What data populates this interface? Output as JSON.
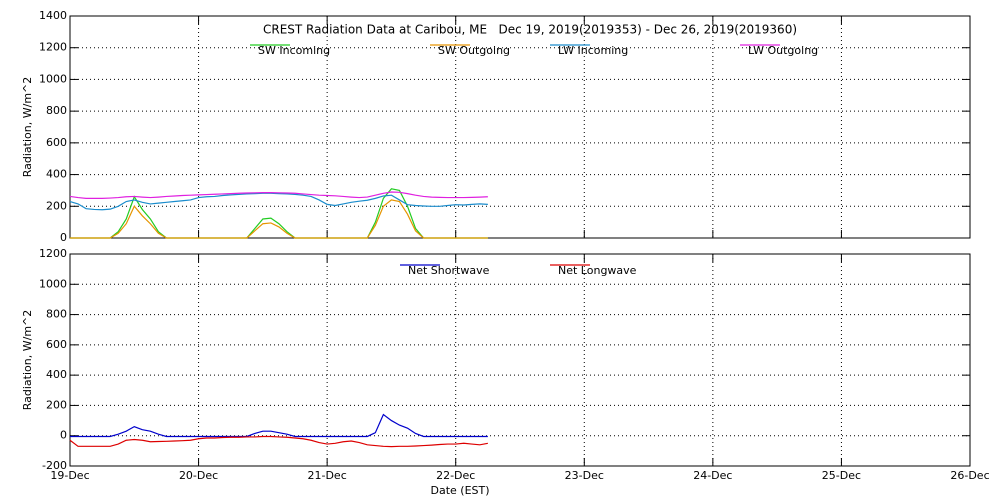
{
  "chart_data": [
    {
      "type": "line",
      "title": "CREST Radiation Data at Caribou, ME   Dec 19, 2019(2019353) - Dec 26, 2019(2019360)",
      "y_label": "Radiation, W/m^2",
      "legend": "upper center",
      "grid": true,
      "xlim": [
        0,
        7
      ],
      "xticks": [
        0,
        1,
        2,
        3,
        4,
        5,
        6,
        7
      ],
      "ylim": [
        0,
        1400
      ],
      "yticks": [
        0,
        200,
        400,
        600,
        800,
        1000,
        1200,
        1400
      ],
      "x": [
        0,
        0.0625,
        0.125,
        0.1875,
        0.25,
        0.3125,
        0.375,
        0.4375,
        0.5,
        0.5625,
        0.625,
        0.6875,
        0.75,
        0.8125,
        0.875,
        0.9375,
        1,
        1.0625,
        1.125,
        1.1875,
        1.25,
        1.3125,
        1.375,
        1.4375,
        1.5,
        1.5625,
        1.625,
        1.6875,
        1.75,
        1.8125,
        1.875,
        1.9375,
        2,
        2.0625,
        2.125,
        2.1875,
        2.25,
        2.3125,
        2.375,
        2.4375,
        2.5,
        2.5625,
        2.625,
        2.6875,
        2.75,
        2.8125,
        2.875,
        2.9375,
        3,
        3.0625,
        3.125,
        3.1875,
        3.25
      ],
      "series": [
        {
          "name": "SW Incoming",
          "color": "#22cc22",
          "values": [
            0,
            0,
            0,
            0,
            0,
            0,
            40,
            120,
            260,
            180,
            120,
            40,
            0,
            0,
            0,
            0,
            0,
            0,
            0,
            0,
            0,
            0,
            0,
            60,
            120,
            125,
            90,
            40,
            0,
            0,
            0,
            0,
            0,
            0,
            0,
            0,
            0,
            0,
            100,
            250,
            310,
            300,
            200,
            60,
            0,
            0,
            0,
            0,
            0,
            0,
            0,
            0,
            0
          ]
        },
        {
          "name": "SW Outgoing",
          "color": "#e69500",
          "values": [
            0,
            0,
            0,
            0,
            0,
            0,
            30,
            90,
            200,
            140,
            90,
            30,
            0,
            0,
            0,
            0,
            0,
            0,
            0,
            0,
            0,
            0,
            0,
            45,
            90,
            95,
            70,
            30,
            0,
            0,
            0,
            0,
            0,
            0,
            0,
            0,
            0,
            0,
            80,
            200,
            240,
            230,
            150,
            45,
            0,
            0,
            0,
            0,
            0,
            0,
            0,
            0,
            0
          ]
        },
        {
          "name": "LW Incoming",
          "color": "#1a8ccc",
          "values": [
            230,
            215,
            185,
            180,
            178,
            182,
            200,
            230,
            240,
            225,
            215,
            220,
            225,
            230,
            235,
            240,
            255,
            260,
            262,
            268,
            272,
            275,
            278,
            280,
            282,
            282,
            280,
            278,
            275,
            270,
            262,
            240,
            212,
            205,
            215,
            225,
            232,
            238,
            250,
            265,
            270,
            240,
            210,
            205,
            202,
            200,
            200,
            205,
            210,
            208,
            212,
            215,
            212
          ]
        },
        {
          "name": "LW Outgoing",
          "color": "#e020e0",
          "values": [
            262,
            255,
            250,
            250,
            250,
            252,
            255,
            260,
            262,
            258,
            255,
            258,
            262,
            265,
            268,
            270,
            272,
            274,
            276,
            278,
            280,
            282,
            284,
            285,
            286,
            286,
            285,
            284,
            282,
            278,
            274,
            270,
            268,
            266,
            262,
            258,
            255,
            258,
            270,
            282,
            290,
            288,
            280,
            270,
            262,
            258,
            256,
            255,
            255,
            255,
            256,
            258,
            260
          ]
        }
      ]
    },
    {
      "type": "line",
      "y_label": "Radiation, W/m^2",
      "x_label": "Date (EST)",
      "legend": "upper center",
      "grid": true,
      "xlim": [
        0,
        7
      ],
      "xticks": [
        {
          "value": 0,
          "label": "19-Dec"
        },
        {
          "value": 1,
          "label": "20-Dec"
        },
        {
          "value": 2,
          "label": "21-Dec"
        },
        {
          "value": 3,
          "label": "22-Dec"
        },
        {
          "value": 4,
          "label": "23-Dec"
        },
        {
          "value": 5,
          "label": "24-Dec"
        },
        {
          "value": 6,
          "label": "25-Dec"
        },
        {
          "value": 7,
          "label": "26-Dec"
        }
      ],
      "ylim": [
        -200,
        1200
      ],
      "yticks": [
        -200,
        0,
        200,
        400,
        600,
        800,
        1000,
        1200
      ],
      "x": [
        0,
        0.0625,
        0.125,
        0.1875,
        0.25,
        0.3125,
        0.375,
        0.4375,
        0.5,
        0.5625,
        0.625,
        0.6875,
        0.75,
        0.8125,
        0.875,
        0.9375,
        1,
        1.0625,
        1.125,
        1.1875,
        1.25,
        1.3125,
        1.375,
        1.4375,
        1.5,
        1.5625,
        1.625,
        1.6875,
        1.75,
        1.8125,
        1.875,
        1.9375,
        2,
        2.0625,
        2.125,
        2.1875,
        2.25,
        2.3125,
        2.375,
        2.4375,
        2.5,
        2.5625,
        2.625,
        2.6875,
        2.75,
        2.8125,
        2.875,
        2.9375,
        3,
        3.0625,
        3.125,
        3.1875,
        3.25
      ],
      "series": [
        {
          "name": "Net Shortwave",
          "color": "#0000cc",
          "values": [
            -5,
            -5,
            -5,
            -5,
            -5,
            -5,
            10,
            30,
            60,
            40,
            30,
            10,
            -5,
            -5,
            -5,
            -5,
            -5,
            -5,
            -5,
            -5,
            -5,
            -5,
            -5,
            15,
            30,
            30,
            20,
            10,
            -5,
            -5,
            -5,
            -5,
            -5,
            -5,
            -5,
            -5,
            -5,
            -5,
            20,
            140,
            100,
            70,
            50,
            15,
            -5,
            -5,
            -5,
            -5,
            -5,
            -5,
            -5,
            -5,
            -5
          ]
        },
        {
          "name": "Net Longwave",
          "color": "#dd0000",
          "values": [
            -30,
            -70,
            -70,
            -70,
            -70,
            -70,
            -55,
            -30,
            -25,
            -30,
            -40,
            -38,
            -37,
            -35,
            -33,
            -30,
            -20,
            -15,
            -15,
            -12,
            -10,
            -10,
            -8,
            -8,
            -5,
            -5,
            -8,
            -10,
            -15,
            -20,
            -30,
            -45,
            -55,
            -50,
            -40,
            -35,
            -45,
            -60,
            -65,
            -70,
            -72,
            -70,
            -70,
            -68,
            -65,
            -62,
            -58,
            -55,
            -55,
            -50,
            -55,
            -60,
            -50
          ]
        }
      ]
    }
  ]
}
